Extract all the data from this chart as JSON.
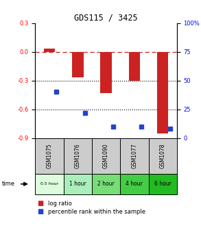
{
  "title": "GDS115 / 3425",
  "samples": [
    "GSM1075",
    "GSM1076",
    "GSM1090",
    "GSM1077",
    "GSM1078"
  ],
  "time_labels": [
    "0.5 hour",
    "1 hour",
    "2 hour",
    "4 hour",
    "6 hour"
  ],
  "log_ratios": [
    0.03,
    -0.27,
    -0.43,
    -0.3,
    -0.85
  ],
  "percentile_ranks": [
    40,
    22,
    10,
    10,
    8
  ],
  "ylim_left": [
    -0.9,
    0.3
  ],
  "ylim_right": [
    0,
    100
  ],
  "yticks_left": [
    0.3,
    0.0,
    -0.3,
    -0.6,
    -0.9
  ],
  "yticks_right": [
    100,
    75,
    50,
    25,
    0
  ],
  "bar_color": "#cc2222",
  "dot_color": "#2244cc",
  "sample_bg_color": "#cccccc",
  "time_colors": [
    "#ddfcdd",
    "#aaeebb",
    "#77dd77",
    "#44cc44",
    "#22bb22"
  ],
  "bar_width": 0.4,
  "legend_bar_label": "log ratio",
  "legend_dot_label": "percentile rank within the sample"
}
